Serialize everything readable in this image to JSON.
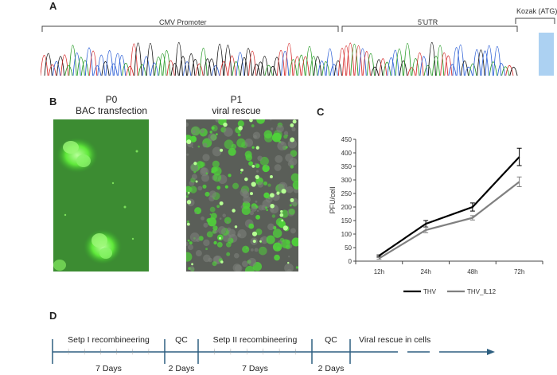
{
  "panels": {
    "a": "A",
    "b": "B",
    "c": "C",
    "d": "D"
  },
  "sequence": {
    "regions": [
      "CMV Promoter",
      "5'UTR",
      "Kozak (ATG)"
    ],
    "bases": "TGTCGTAACAACTCCGCCCCATTGACGCAAATGGGCGGTAGGCGTGTACGGTGGGAGGTCTATATAAGCACCGTTTATCTAGGTACCAGATATCAGAATTCCCGCACGCCACCATG",
    "base_colors": {
      "A": "#2a9d2a",
      "C": "#2c5fd6",
      "G": "#111111",
      "T": "#d62f2f"
    },
    "highlight_color": "#9ec9f0"
  },
  "micrographs": [
    {
      "title1": "P0",
      "title2": "BAC transfection",
      "icon": "gfp-fluorescence-image"
    },
    {
      "title1": "P1",
      "title2": "viral rescue",
      "icon": "gfp-brightfield-overlay-image"
    }
  ],
  "chart_data": {
    "type": "line",
    "categories": [
      "12h",
      "24h",
      "48h",
      "72h"
    ],
    "ylabel": "PFU/cell",
    "ylim": [
      0,
      450
    ],
    "yticks": [
      0,
      50,
      100,
      150,
      200,
      250,
      300,
      350,
      400,
      450
    ],
    "series": [
      {
        "name": "THV",
        "color": "#000000",
        "values": [
          20,
          138,
          200,
          385
        ],
        "errors": [
          3,
          12,
          15,
          32
        ]
      },
      {
        "name": "THV_IL12",
        "color": "#808080",
        "values": [
          10,
          115,
          160,
          293
        ],
        "errors": [
          3,
          10,
          8,
          18
        ]
      }
    ],
    "legend_position": "bottom"
  },
  "timeline": {
    "steps": [
      {
        "label": "Setp I recombineering",
        "duration": "7 Days"
      },
      {
        "label": "QC",
        "duration": "2 Days"
      },
      {
        "label": "Setp II recombineering",
        "duration": "7 Days"
      },
      {
        "label": "QC",
        "duration": "2 Days"
      },
      {
        "label": "Viral rescue in cells",
        "duration": ""
      }
    ],
    "color": "#2e5f80"
  }
}
